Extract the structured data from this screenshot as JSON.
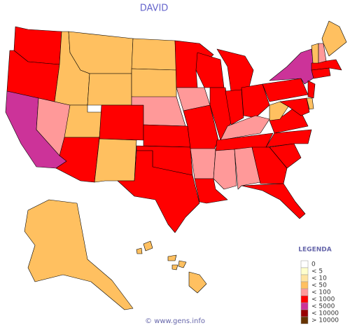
{
  "title": "DAVID",
  "legend": {
    "title": "LEGENDA",
    "items": [
      {
        "label": "0",
        "color": "#ffffff"
      },
      {
        "label": "< 5",
        "color": "#ffffcc"
      },
      {
        "label": "< 10",
        "color": "#ffe4a0"
      },
      {
        "label": "< 50",
        "color": "#ffc060"
      },
      {
        "label": "< 100",
        "color": "#ff9999"
      },
      {
        "label": "< 1000",
        "color": "#ff0000"
      },
      {
        "label": "< 5000",
        "color": "#cc3399"
      },
      {
        "label": "< 10000",
        "color": "#990000"
      },
      {
        "label": "> 10000",
        "color": "#663300"
      }
    ]
  },
  "footer": "© www.gens.info"
}
